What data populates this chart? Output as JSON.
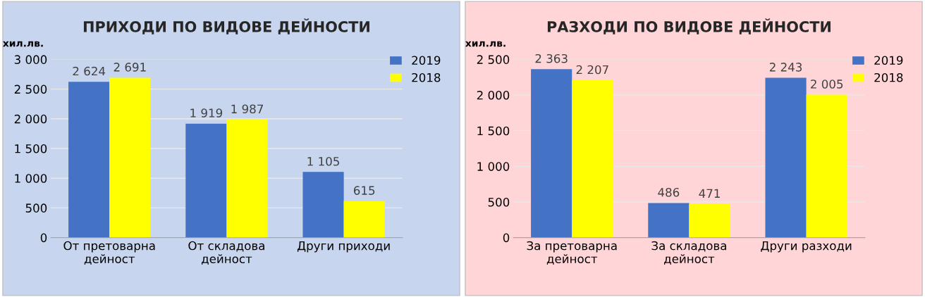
{
  "chart_data": [
    {
      "type": "bar",
      "title": "ПРИХОДИ ПО ВИДОВЕ ДЕЙНОСТИ",
      "ylabel": "хил.лв.",
      "categories": [
        "От претоварна\nдейност",
        "От складова\nдейност",
        "Други приходи"
      ],
      "series": [
        {
          "name": "2019",
          "color": "#4472c4",
          "values": [
            2624,
            1919,
            1105
          ],
          "value_labels": [
            "2 624",
            "1 919",
            "1 105"
          ]
        },
        {
          "name": "2018",
          "color": "#ffff00",
          "values": [
            2691,
            1987,
            615
          ],
          "value_labels": [
            "2 691",
            "1 987",
            "615"
          ]
        }
      ],
      "ylim": [
        0,
        3000
      ],
      "yticks": [
        0,
        500,
        {
          "value": 1000,
          "label": "1 000"
        },
        {
          "value": 1500,
          "label": "1 500"
        },
        {
          "value": 2000,
          "label": "2 000"
        },
        {
          "value": 2500,
          "label": "2 500"
        },
        {
          "value": 3000,
          "label": "3 000"
        }
      ],
      "grid": "y",
      "legend": "top right"
    },
    {
      "type": "bar",
      "title": "РАЗХОДИ ПО ВИДОВЕ ДЕЙНОСТИ",
      "ylabel": "хил.лв.",
      "categories": [
        "За претоварна\nдейност",
        "За складова\nдейност",
        "Други разходи"
      ],
      "series": [
        {
          "name": "2019",
          "color": "#4472c4",
          "values": [
            2363,
            486,
            2243
          ],
          "value_labels": [
            "2 363",
            "486",
            "2 243"
          ]
        },
        {
          "name": "2018",
          "color": "#ffff00",
          "values": [
            2207,
            471,
            2005
          ],
          "value_labels": [
            "2 207",
            "471",
            "2 005"
          ]
        }
      ],
      "ylim": [
        0,
        2500
      ],
      "yticks": [
        0,
        500,
        {
          "value": 1000,
          "label": "1 000"
        },
        {
          "value": 1500,
          "label": "1 500"
        },
        {
          "value": 2000,
          "label": "2 000"
        },
        {
          "value": 2500,
          "label": "2 500"
        }
      ],
      "grid": "y",
      "legend": "top right"
    }
  ]
}
